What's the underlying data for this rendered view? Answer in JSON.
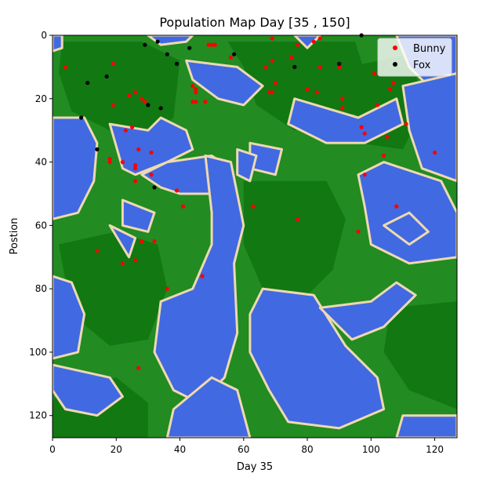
{
  "chart_data": {
    "type": "scatter",
    "title": "Population Map Day [35 , 150]",
    "xlabel": "Day 35",
    "ylabel": "Postion",
    "xlim": [
      0,
      127
    ],
    "ylim": [
      127,
      0
    ],
    "y_axis_inverted": true,
    "x_ticks": [
      0,
      20,
      40,
      60,
      80,
      100,
      120
    ],
    "y_ticks": [
      0,
      20,
      40,
      60,
      80,
      100,
      120
    ],
    "grid": false,
    "legend_position": "top-right",
    "background": {
      "type": "terrain map",
      "colors": {
        "water": "#4169e1",
        "sand": "#eed9b0",
        "grass": "#228b22",
        "forest": "#127812"
      }
    },
    "series": [
      {
        "name": "Bunny",
        "color": "#ff0000",
        "points": [
          [
            4,
            10
          ],
          [
            19,
            9
          ],
          [
            24,
            19
          ],
          [
            28,
            20
          ],
          [
            26,
            18
          ],
          [
            29,
            21
          ],
          [
            19,
            22
          ],
          [
            23,
            30
          ],
          [
            25,
            29
          ],
          [
            27,
            36
          ],
          [
            31,
            37
          ],
          [
            18,
            39
          ],
          [
            18,
            40
          ],
          [
            22,
            40
          ],
          [
            26,
            41
          ],
          [
            26,
            42
          ],
          [
            31,
            44
          ],
          [
            26,
            46
          ],
          [
            39,
            49
          ],
          [
            41,
            54
          ],
          [
            14,
            68
          ],
          [
            22,
            72
          ],
          [
            26,
            71
          ],
          [
            28,
            65
          ],
          [
            32,
            65
          ],
          [
            36,
            80
          ],
          [
            47,
            76
          ],
          [
            27,
            105
          ],
          [
            44,
            16
          ],
          [
            45,
            17
          ],
          [
            45,
            18
          ],
          [
            44,
            21
          ],
          [
            45,
            21
          ],
          [
            48,
            21
          ],
          [
            49,
            3
          ],
          [
            50,
            3
          ],
          [
            51,
            3
          ],
          [
            56,
            7
          ],
          [
            67,
            10
          ],
          [
            69,
            8
          ],
          [
            70,
            15
          ],
          [
            68,
            18
          ],
          [
            69,
            18
          ],
          [
            69,
            1
          ],
          [
            75,
            7
          ],
          [
            77,
            3
          ],
          [
            80,
            17
          ],
          [
            82,
            2
          ],
          [
            83,
            18
          ],
          [
            84,
            10
          ],
          [
            84,
            1
          ],
          [
            90,
            10
          ],
          [
            91,
            20
          ],
          [
            91,
            23
          ],
          [
            97,
            29
          ],
          [
            98,
            31
          ],
          [
            98,
            44
          ],
          [
            96,
            62
          ],
          [
            101,
            12
          ],
          [
            102,
            22
          ],
          [
            106,
            17
          ],
          [
            107,
            15
          ],
          [
            105,
            32
          ],
          [
            104,
            38
          ],
          [
            108,
            54
          ],
          [
            111,
            28
          ],
          [
            120,
            37
          ],
          [
            63,
            54
          ],
          [
            77,
            58
          ]
        ]
      },
      {
        "name": "Fox",
        "color": "#000000",
        "points": [
          [
            11,
            15
          ],
          [
            17,
            13
          ],
          [
            9,
            26
          ],
          [
            14,
            36
          ],
          [
            29,
            3
          ],
          [
            33,
            2
          ],
          [
            36,
            6
          ],
          [
            39,
            9
          ],
          [
            30,
            22
          ],
          [
            34,
            23
          ],
          [
            32,
            48
          ],
          [
            43,
            4
          ],
          [
            57,
            6
          ],
          [
            76,
            10
          ],
          [
            90,
            9
          ],
          [
            97,
            0
          ]
        ]
      }
    ]
  }
}
